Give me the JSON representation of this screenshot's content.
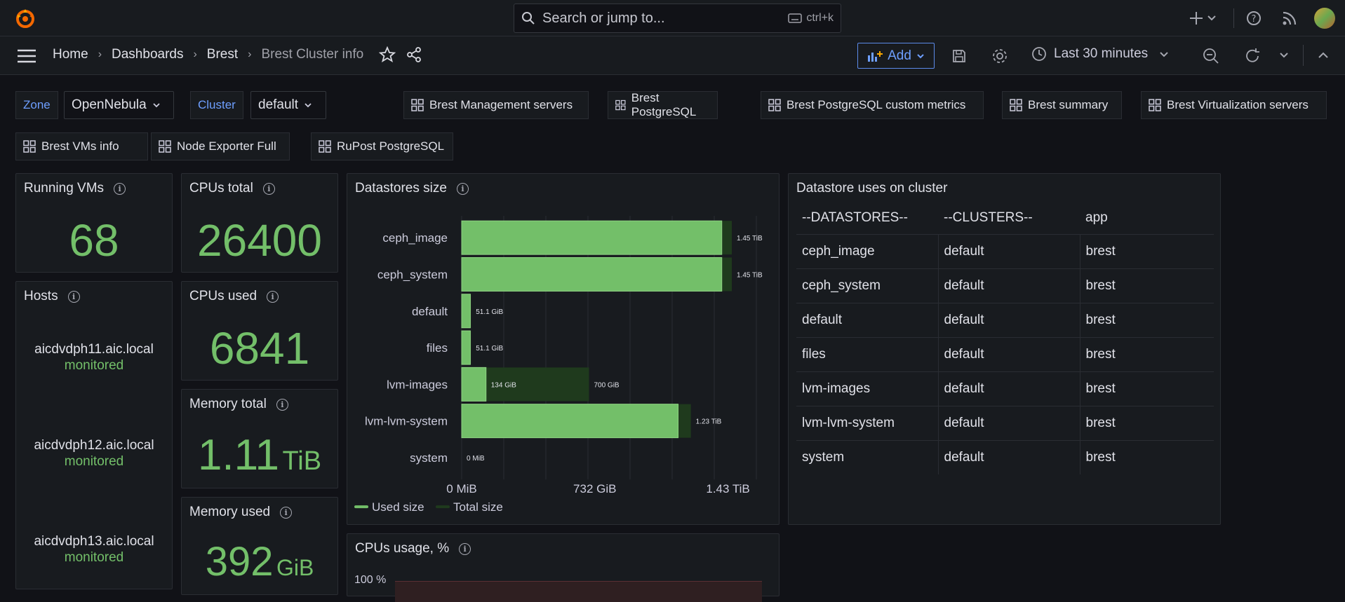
{
  "topbar": {
    "search_placeholder": "Search or jump to...",
    "search_shortcut": "ctrl+k",
    "icons": [
      "grafana-logo-icon",
      "plus-icon",
      "help-icon",
      "rss-icon",
      "avatar"
    ]
  },
  "breadcrumbs": [
    "Home",
    "Dashboards",
    "Brest",
    "Brest Cluster info"
  ],
  "toolbar": {
    "add_label": "Add",
    "time_range": "Last 30 minutes"
  },
  "variables": [
    {
      "label": "Zone",
      "value": "OpenNebula"
    },
    {
      "label": "Cluster",
      "value": "default"
    }
  ],
  "dashboard_links": [
    "Brest Management servers",
    "Brest PostgreSQL",
    "Brest PostgreSQL custom metrics",
    "Brest summary",
    "Brest Virtualization servers",
    "Brest VMs info",
    "Node Exporter Full",
    "RuPost PostgreSQL"
  ],
  "stats": {
    "running_vms": {
      "title": "Running VMs",
      "value": "68"
    },
    "cpus_total": {
      "title": "CPUs total",
      "value": "26400"
    },
    "cpus_used": {
      "title": "CPUs used",
      "value": "6841"
    },
    "memory_total": {
      "title": "Memory total",
      "value": "1.11",
      "unit": "TiB"
    },
    "memory_used": {
      "title": "Memory used",
      "value": "392",
      "unit": "GiB"
    }
  },
  "hosts": {
    "title": "Hosts",
    "items": [
      {
        "name": "aicdvdph11.aic.local",
        "status": "monitored"
      },
      {
        "name": "aicdvdph12.aic.local",
        "status": "monitored"
      },
      {
        "name": "aicdvdph13.aic.local",
        "status": "monitored"
      }
    ]
  },
  "datastores_chart": {
    "title": "Datastores size",
    "tick_labels": [
      "0 MiB",
      "732 GiB",
      "1.43 TiB"
    ],
    "legend": [
      "Used size",
      "Total size"
    ]
  },
  "chart_data": {
    "type": "bar",
    "orientation": "horizontal",
    "unit": "GiB",
    "categories": [
      "ceph_image",
      "ceph_system",
      "default",
      "files",
      "lvm-images",
      "lvm-lvm-system",
      "system"
    ],
    "series": [
      {
        "name": "Used size",
        "color": "#73bf69",
        "values": [
          1430,
          1430,
          48,
          48,
          134,
          1190,
          0
        ]
      },
      {
        "name": "Total size",
        "color": "#1f3a1d",
        "values": [
          1485,
          1485,
          51.1,
          51.1,
          700,
          1260,
          0
        ]
      }
    ],
    "data_labels": [
      "1.45 TiB",
      "1.45 TiB",
      "51.1 GiB",
      "51.1 GiB",
      "700 GiB",
      "1.23 TiB",
      "0 MiB"
    ],
    "used_labels": [
      "",
      "",
      "",
      "",
      "134 GiB",
      "",
      ""
    ],
    "xlim": [
      0,
      1620
    ],
    "xticks": [
      0,
      732,
      1464
    ],
    "legend_position": "bottom-left",
    "grid": true
  },
  "cpus_usage": {
    "title": "CPUs usage, %",
    "y_label_top": "100 %"
  },
  "datastore_table": {
    "title": "Datastore uses on cluster",
    "columns": [
      "--DATASTORES--",
      "--CLUSTERS--",
      "app"
    ],
    "rows": [
      [
        "ceph_image",
        "default",
        "brest"
      ],
      [
        "ceph_system",
        "default",
        "brest"
      ],
      [
        "default",
        "default",
        "brest"
      ],
      [
        "files",
        "default",
        "brest"
      ],
      [
        "lvm-images",
        "default",
        "brest"
      ],
      [
        "lvm-lvm-system",
        "default",
        "brest"
      ],
      [
        "system",
        "default",
        "brest"
      ]
    ]
  }
}
